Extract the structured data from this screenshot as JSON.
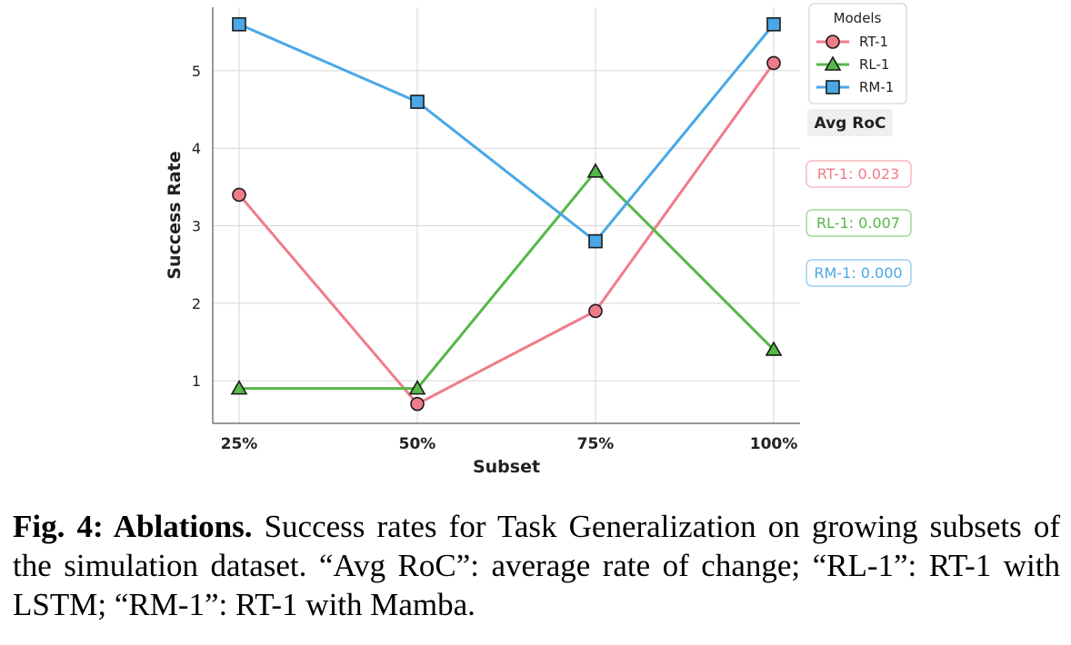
{
  "chart_data": {
    "type": "line",
    "categories": [
      "25%",
      "50%",
      "75%",
      "100%"
    ],
    "xlabel": "Subset",
    "ylabel": "Success Rate",
    "ylim": [
      0.45,
      5.82
    ],
    "yticks": [
      1,
      2,
      3,
      4,
      5
    ],
    "grid": true,
    "legend": {
      "title": "Models",
      "placement": "top-right, outside"
    },
    "series": [
      {
        "name": "RT-1",
        "marker": "circle",
        "color": "#f07c8a",
        "values": [
          3.4,
          0.7,
          1.9,
          5.1
        ]
      },
      {
        "name": "RL-1",
        "marker": "triangle",
        "color": "#56b848",
        "values": [
          0.9,
          0.9,
          3.7,
          1.4
        ]
      },
      {
        "name": "RM-1",
        "marker": "square",
        "color": "#4aa8e6",
        "values": [
          5.6,
          4.6,
          2.8,
          5.6
        ]
      }
    ],
    "annotations": {
      "heading": "Avg RoC",
      "badges": [
        {
          "text": "RT-1: 0.023",
          "color": "#f07c8a"
        },
        {
          "text": "RL-1: 0.007",
          "color": "#56b848"
        },
        {
          "text": "RM-1: 0.000",
          "color": "#4aa8e6"
        }
      ]
    }
  },
  "caption": {
    "label": "Fig. 4: Ablations.",
    "text": " Success rates for Task Generalization on growing subsets of the simulation dataset. “Avg RoC”: average rate of change; “RL-1”: RT-1 with LSTM; “RM-1”: RT-1 with Mamba."
  }
}
